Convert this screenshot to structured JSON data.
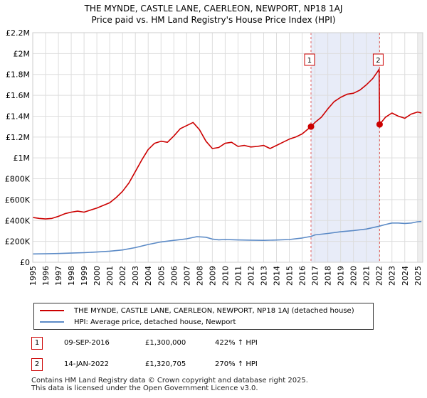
{
  "title_line1": "THE MYNDE, CASTLE LANE, CAERLEON, NEWPORT, NP18 1AJ",
  "title_line2": "Price paid vs. HM Land Registry's House Price Index (HPI)",
  "chart_data": {
    "type": "line",
    "title": "THE MYNDE, CASTLE LANE, CAERLEON, NEWPORT, NP18 1AJ — Price paid vs. HM Land Registry's House Price Index (HPI)",
    "xlim": [
      1995,
      2025.4
    ],
    "ylim": [
      0,
      2200000
    ],
    "x_ticks": [
      1995,
      1996,
      1997,
      1998,
      1999,
      2000,
      2001,
      2002,
      2003,
      2004,
      2005,
      2006,
      2007,
      2008,
      2009,
      2010,
      2011,
      2012,
      2013,
      2014,
      2015,
      2016,
      2017,
      2018,
      2019,
      2020,
      2021,
      2022,
      2023,
      2024,
      2025
    ],
    "x_tick_labels": [
      "1995",
      "1996",
      "1997",
      "1998",
      "1999",
      "2000",
      "2001",
      "2002",
      "2003",
      "2004",
      "2005",
      "2006",
      "2007",
      "2008",
      "2009",
      "2010",
      "2011",
      "2012",
      "2013",
      "2014",
      "2015",
      "2016",
      "2017",
      "2018",
      "2019",
      "2020",
      "2021",
      "2022",
      "2023",
      "2024",
      "2025"
    ],
    "y_ticks": [
      0,
      200000,
      400000,
      600000,
      800000,
      1000000,
      1200000,
      1400000,
      1600000,
      1800000,
      2000000,
      2200000
    ],
    "y_tick_labels": [
      "£0",
      "£200K",
      "£400K",
      "£600K",
      "£800K",
      "£1M",
      "£1.2M",
      "£1.4M",
      "£1.6M",
      "£1.8M",
      "£2M",
      "£2.2M"
    ],
    "highlight_span": [
      2016.69,
      2022.04
    ],
    "series": [
      {
        "name": "THE MYNDE, CASTLE LANE, CAERLEON, NEWPORT, NP18 1AJ (detached house)",
        "color": "#cc0000",
        "x": [
          1995,
          1995.5,
          1996,
          1996.5,
          1997,
          1997.5,
          1998,
          1998.5,
          1999,
          1999.5,
          2000,
          2000.5,
          2001,
          2001.5,
          2002,
          2002.5,
          2003,
          2003.5,
          2004,
          2004.5,
          2005,
          2005.5,
          2006,
          2006.5,
          2007,
          2007.5,
          2008,
          2008.5,
          2009,
          2009.5,
          2010,
          2010.5,
          2011,
          2011.5,
          2012,
          2012.5,
          2013,
          2013.5,
          2014,
          2014.5,
          2015,
          2015.5,
          2016,
          2016.69,
          2017,
          2017.5,
          2018,
          2018.5,
          2019,
          2019.5,
          2020,
          2020.5,
          2021,
          2021.5,
          2021.9,
          2022.0,
          2022.04,
          2022.5,
          2023,
          2023.5,
          2024,
          2024.5,
          2025,
          2025.3
        ],
        "values": [
          430000,
          420000,
          415000,
          420000,
          440000,
          465000,
          480000,
          490000,
          480000,
          500000,
          520000,
          545000,
          570000,
          620000,
          680000,
          760000,
          870000,
          980000,
          1080000,
          1140000,
          1160000,
          1150000,
          1210000,
          1280000,
          1310000,
          1340000,
          1270000,
          1160000,
          1090000,
          1100000,
          1140000,
          1150000,
          1110000,
          1120000,
          1105000,
          1110000,
          1120000,
          1090000,
          1120000,
          1150000,
          1180000,
          1200000,
          1230000,
          1300000,
          1340000,
          1390000,
          1470000,
          1540000,
          1580000,
          1610000,
          1620000,
          1650000,
          1700000,
          1760000,
          1830000,
          1850000,
          1320705,
          1390000,
          1430000,
          1400000,
          1380000,
          1420000,
          1440000,
          1430000
        ]
      },
      {
        "name": "HPI: Average price, detached house, Newport",
        "color": "#5b8ac6",
        "x": [
          1995,
          1996,
          1997,
          1998,
          1999,
          2000,
          2001,
          2002,
          2003,
          2004,
          2005,
          2006,
          2007,
          2007.8,
          2008.5,
          2009,
          2009.5,
          2010,
          2011,
          2012,
          2013,
          2014,
          2015,
          2016,
          2016.69,
          2017,
          2018,
          2019,
          2020,
          2021,
          2022,
          2022.5,
          2023,
          2023.5,
          2024,
          2024.5,
          2025,
          2025.3
        ],
        "values": [
          80000,
          81000,
          84000,
          88000,
          92000,
          98000,
          106000,
          118000,
          140000,
          170000,
          195000,
          210000,
          225000,
          245000,
          240000,
          222000,
          215000,
          218000,
          214000,
          212000,
          210000,
          213000,
          218000,
          232000,
          248000,
          262000,
          276000,
          292000,
          304000,
          318000,
          345000,
          362000,
          376000,
          376000,
          372000,
          376000,
          388000,
          390000
        ]
      }
    ],
    "markers": [
      {
        "label": "1",
        "x": 2016.69,
        "value": 1300000
      },
      {
        "label": "2",
        "x": 2022.04,
        "value": 1320705
      }
    ]
  },
  "legend": {
    "items": [
      {
        "label": "THE MYNDE, CASTLE LANE, CAERLEON, NEWPORT, NP18 1AJ (detached house)",
        "color": "#cc0000"
      },
      {
        "label": "HPI: Average price, detached house, Newport",
        "color": "#5b8ac6"
      }
    ]
  },
  "transactions": [
    {
      "num": "1",
      "date": "09-SEP-2016",
      "price": "£1,300,000",
      "hpi": "422% ↑ HPI"
    },
    {
      "num": "2",
      "date": "14-JAN-2022",
      "price": "£1,320,705",
      "hpi": "270% ↑ HPI"
    }
  ],
  "footer": {
    "line1": "Contains HM Land Registry data © Crown copyright and database right 2025.",
    "line2": "This data is licensed under the Open Government Licence v3.0."
  }
}
